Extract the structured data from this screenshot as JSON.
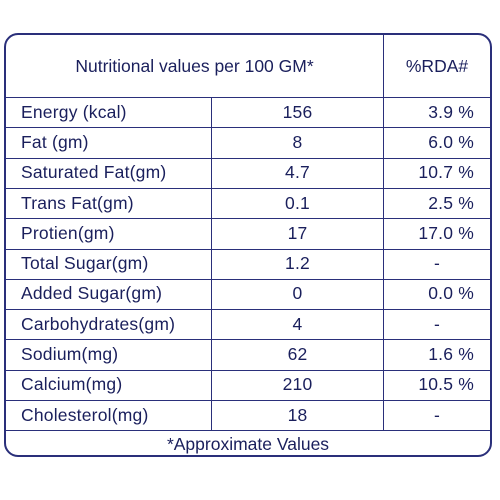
{
  "table": {
    "header_left": "Nutritional values per 100 GM*",
    "header_right": "%RDA#",
    "rows": [
      {
        "name": "Energy (kcal)",
        "value": "156",
        "rda": "3.9 %"
      },
      {
        "name": "Fat (gm)",
        "value": "8",
        "rda": "6.0 %"
      },
      {
        "name": "Saturated Fat(gm)",
        "value": "4.7",
        "rda": "10.7 %"
      },
      {
        "name": "Trans Fat(gm)",
        "value": "0.1",
        "rda": "2.5 %"
      },
      {
        "name": "Protien(gm)",
        "value": "17",
        "rda": "17.0 %"
      },
      {
        "name": "Total Sugar(gm)",
        "value": "1.2",
        "rda": "-"
      },
      {
        "name": "Added Sugar(gm)",
        "value": "0",
        "rda": "0.0 %"
      },
      {
        "name": "Carbohydrates(gm)",
        "value": "4",
        "rda": "-"
      },
      {
        "name": "Sodium(mg)",
        "value": "62",
        "rda": "1.6 %"
      },
      {
        "name": "Calcium(mg)",
        "value": "210",
        "rda": "10.5 %"
      },
      {
        "name": "Cholesterol(mg)",
        "value": "18",
        "rda": "-"
      }
    ],
    "footer": "*Approximate Values"
  }
}
